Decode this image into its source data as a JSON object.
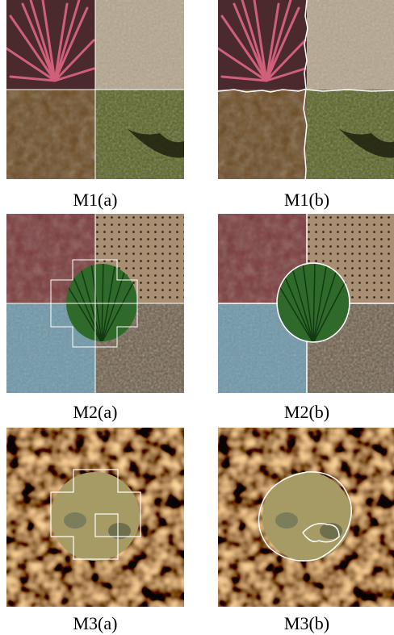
{
  "figure": {
    "captions": [
      "M1(a)",
      "M1(b)",
      "M2(a)",
      "M2(b)",
      "M3(a)",
      "M3(b)"
    ]
  }
}
